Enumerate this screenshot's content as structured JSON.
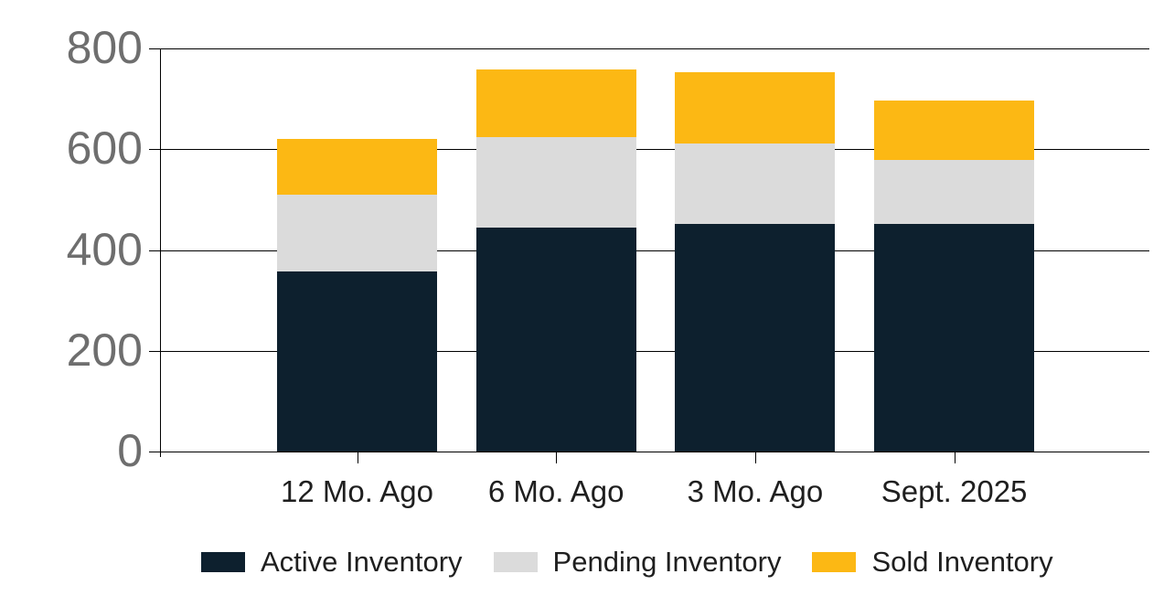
{
  "chart_data": {
    "type": "bar",
    "stacked": true,
    "title": "",
    "xlabel": "",
    "ylabel": "",
    "categories": [
      "12 Mo. Ago",
      "6 Mo. Ago",
      "3 Mo. Ago",
      "Sept. 2025"
    ],
    "series": [
      {
        "name": "Active Inventory",
        "color": "#0d202e",
        "values": [
          358,
          445,
          452,
          452
        ]
      },
      {
        "name": "Pending Inventory",
        "color": "#dbdbdb",
        "values": [
          152,
          180,
          159,
          127
        ]
      },
      {
        "name": "Sold Inventory",
        "color": "#fcb814",
        "values": [
          110,
          134,
          142,
          117
        ]
      }
    ],
    "totals": [
      620,
      759,
      753,
      696
    ],
    "ylim": [
      0,
      800
    ],
    "yticks": [
      0,
      200,
      400,
      600,
      800
    ],
    "grid": true,
    "legend_position": "bottom"
  },
  "colors": {
    "background": "#ffffff",
    "gridline": "#000000",
    "y_tick_label": "#6e6e6e",
    "x_tick_label": "#1f1f1f",
    "legend_text": "#1f1f1f"
  }
}
